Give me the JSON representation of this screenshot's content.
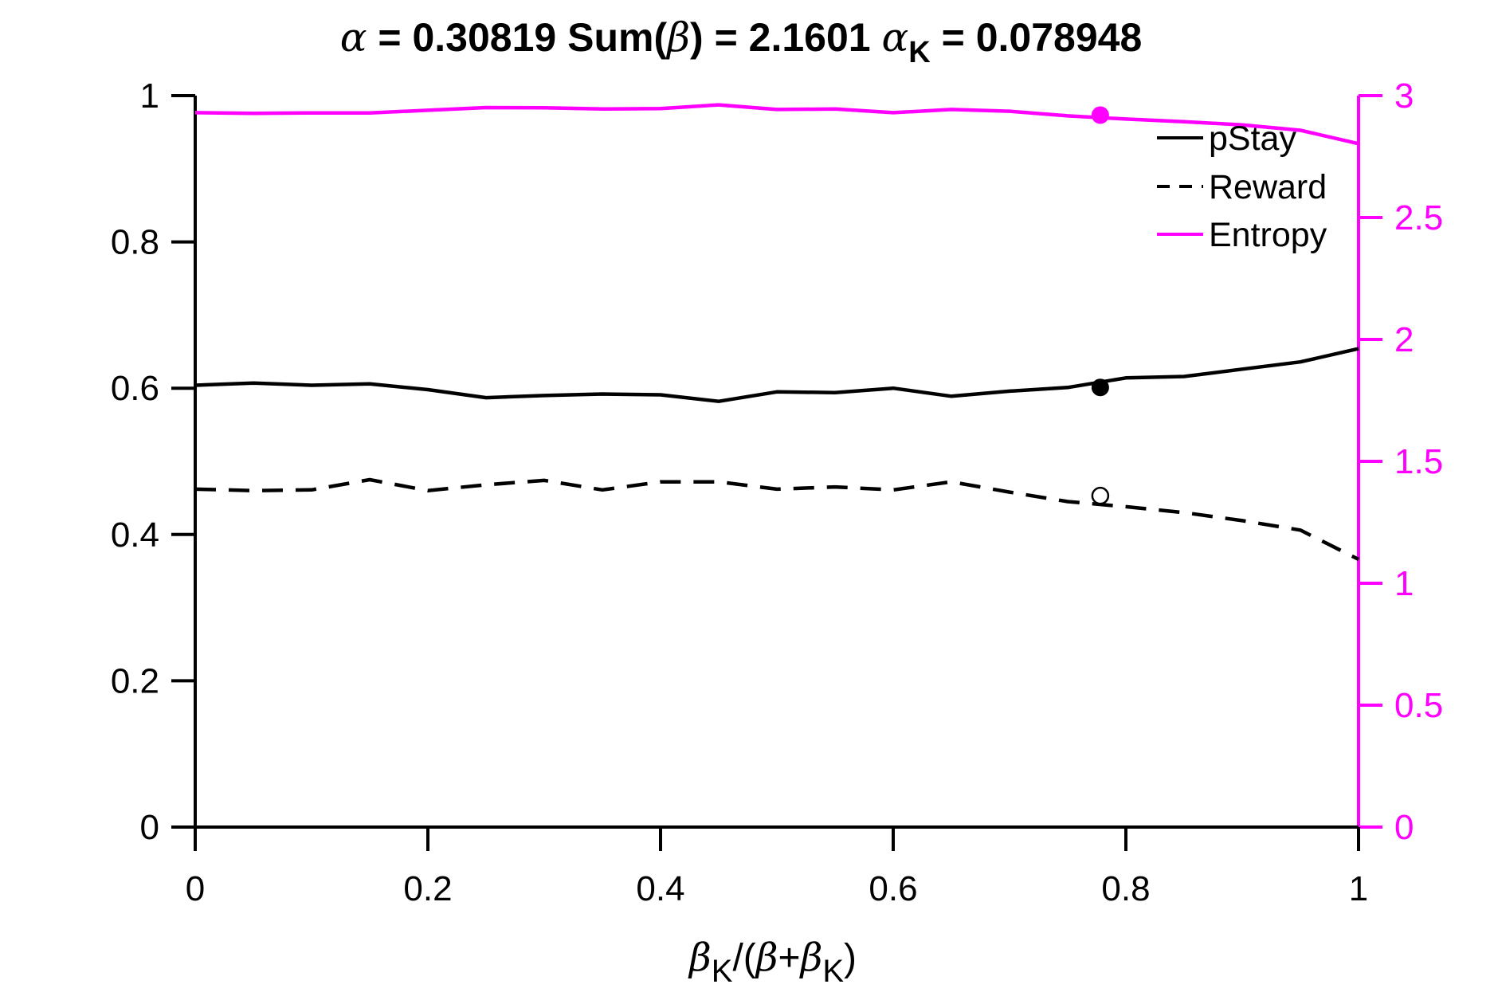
{
  "title": {
    "alpha_symbol": "α",
    "part1": " = 0.30819 Sum(",
    "beta_symbol": "β",
    "part2": ") = 2.1601 ",
    "alphaK_symbol": "α",
    "alphaK_sub": "K",
    "part3": " = 0.078948"
  },
  "xlabel": {
    "beta1": "β",
    "sub1": "K",
    "mid": "/(",
    "beta2": "β",
    "plus": "+",
    "beta3": "β",
    "sub2": "K",
    "end": ")"
  },
  "colors": {
    "left_axis": "#000000",
    "right_axis": "#ff00ff",
    "pstay": "#000000",
    "reward": "#000000",
    "entropy": "#ff00ff"
  },
  "chart_data": {
    "type": "line",
    "xlim": [
      0,
      1
    ],
    "ylim_left": [
      0,
      1
    ],
    "ylim_right": [
      0,
      3
    ],
    "x": [
      0,
      0.05,
      0.1,
      0.15,
      0.2,
      0.25,
      0.3,
      0.35,
      0.4,
      0.45,
      0.5,
      0.55,
      0.6,
      0.65,
      0.7,
      0.75,
      0.8,
      0.85,
      0.9,
      0.95,
      1.0
    ],
    "x_ticks": [
      "0",
      "0.2",
      "0.4",
      "0.6",
      "0.8",
      "1"
    ],
    "x_tick_values": [
      0,
      0.2,
      0.4,
      0.6,
      0.8,
      1
    ],
    "y_left_ticks": [
      "0",
      "0.2",
      "0.4",
      "0.6",
      "0.8",
      "1"
    ],
    "y_left_tick_values": [
      0,
      0.2,
      0.4,
      0.6,
      0.8,
      1
    ],
    "y_right_ticks": [
      "0",
      "0.5",
      "1",
      "1.5",
      "2",
      "2.5",
      "3"
    ],
    "y_right_tick_values": [
      0,
      0.5,
      1,
      1.5,
      2,
      2.5,
      3
    ],
    "series": [
      {
        "name": "pStay",
        "axis": "left",
        "style": "solid",
        "values": [
          0.604,
          0.607,
          0.604,
          0.606,
          0.598,
          0.587,
          0.59,
          0.592,
          0.591,
          0.582,
          0.595,
          0.594,
          0.6,
          0.589,
          0.596,
          0.601,
          0.614,
          0.616,
          0.626,
          0.636,
          0.654
        ]
      },
      {
        "name": "Reward",
        "axis": "left",
        "style": "dashed",
        "values": [
          0.462,
          0.46,
          0.461,
          0.475,
          0.46,
          0.468,
          0.474,
          0.461,
          0.472,
          0.472,
          0.462,
          0.465,
          0.461,
          0.472,
          0.458,
          0.445,
          0.438,
          0.43,
          0.419,
          0.406,
          0.366
        ]
      },
      {
        "name": "Entropy",
        "axis": "right",
        "style": "solid",
        "values": [
          2.93,
          2.927,
          2.929,
          2.929,
          2.94,
          2.951,
          2.95,
          2.945,
          2.947,
          2.962,
          2.943,
          2.945,
          2.93,
          2.943,
          2.936,
          2.917,
          2.904,
          2.893,
          2.88,
          2.858,
          2.803
        ]
      }
    ],
    "markers": [
      {
        "name": "Entropy",
        "x": 0.778,
        "y": 2.92,
        "axis": "right",
        "fill": "filled"
      },
      {
        "name": "pStay",
        "x": 0.778,
        "y": 0.601,
        "axis": "left",
        "fill": "filled"
      },
      {
        "name": "Reward",
        "x": 0.778,
        "y": 0.453,
        "axis": "left",
        "fill": "open"
      }
    ],
    "legend": {
      "placement": "top-right",
      "entries": [
        "pStay",
        "Reward",
        "Entropy"
      ]
    },
    "grid": false
  }
}
